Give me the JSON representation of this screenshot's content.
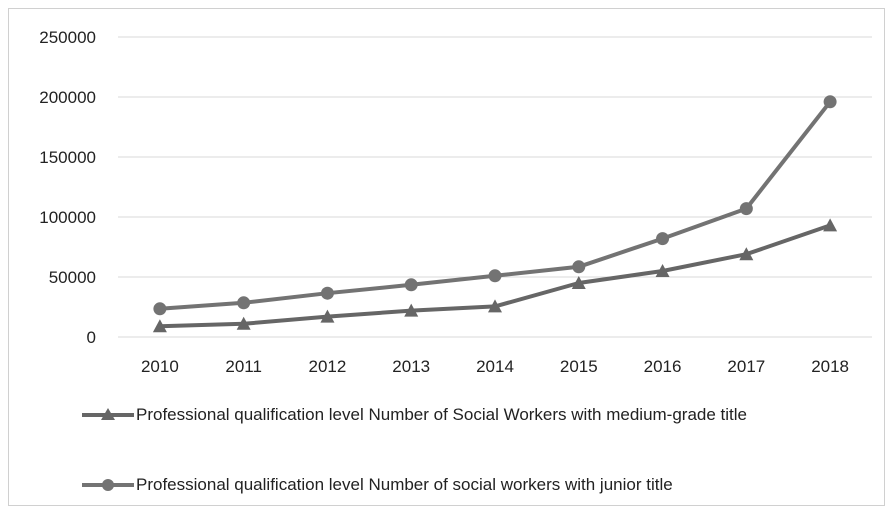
{
  "chart_data": {
    "type": "line",
    "title": "",
    "xlabel": "",
    "ylabel": "",
    "categories": [
      "2010",
      "2011",
      "2012",
      "2013",
      "2014",
      "2015",
      "2016",
      "2017",
      "2018"
    ],
    "ylim": [
      0,
      250000
    ],
    "yticks": [
      "0",
      "50000",
      "100000",
      "150000",
      "200000",
      "250000"
    ],
    "grid": true,
    "legend_position": "bottom",
    "series": [
      {
        "name": "Professional qualification level Number of Social Workers with medium-grade title",
        "marker": "triangle",
        "color": "#666666",
        "values": [
          9000,
          11000,
          17000,
          22000,
          25500,
          45000,
          55000,
          69000,
          93000
        ]
      },
      {
        "name": "Professional qualification level Number of social workers with junior title",
        "marker": "circle",
        "color": "#737373",
        "values": [
          23500,
          28500,
          36500,
          43500,
          51000,
          58500,
          82000,
          107000,
          196000
        ]
      }
    ]
  }
}
